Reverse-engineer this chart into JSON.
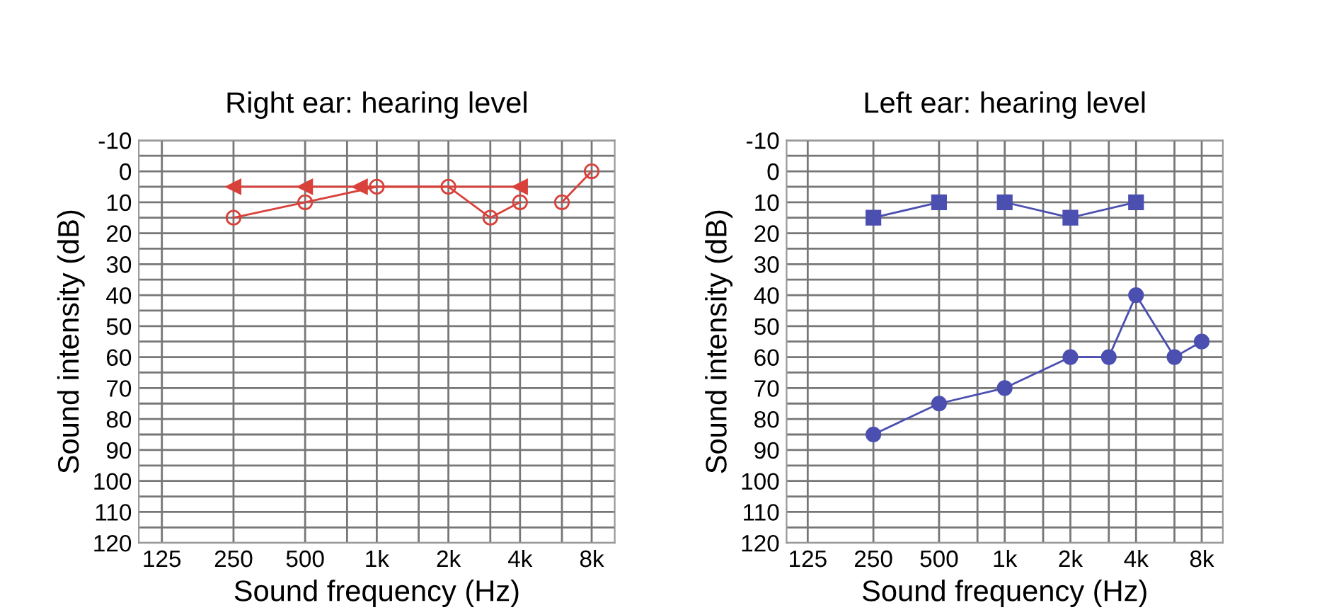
{
  "chart_data": [
    {
      "type": "line",
      "title": "Right ear: hearing level",
      "xlabel": "Sound frequency (Hz)",
      "ylabel": "Sound intensity (dB)",
      "log": "x",
      "grid": true,
      "xlim": [
        100,
        10000
      ],
      "ylim": [
        120,
        -10
      ],
      "xticks": [
        125,
        250,
        500,
        {
          "value": 750,
          "label": null
        },
        {
          "value": 1000,
          "label": "1k"
        },
        {
          "value": 1500,
          "label": null
        },
        {
          "value": 2000,
          "label": "2k"
        },
        {
          "value": 3000,
          "label": null
        },
        {
          "value": 4000,
          "label": "4k"
        },
        {
          "value": 6000,
          "label": null
        },
        {
          "value": 8000,
          "label": "8k"
        }
      ],
      "yticks": [
        -10,
        {
          "value": -5,
          "label": null
        },
        0,
        {
          "value": 5,
          "label": null
        },
        10,
        {
          "value": 15,
          "label": null
        },
        20,
        {
          "value": 25,
          "label": null
        },
        30,
        {
          "value": 35,
          "label": null
        },
        40,
        {
          "value": 45,
          "label": null
        },
        50,
        {
          "value": 55,
          "label": null
        },
        60,
        {
          "value": 65,
          "label": null
        },
        70,
        {
          "value": 75,
          "label": null
        },
        80,
        {
          "value": 85,
          "label": null
        },
        90,
        {
          "value": 95,
          "label": null
        },
        100,
        {
          "value": 105,
          "label": null
        },
        110,
        {
          "value": 115,
          "label": null
        },
        120
      ],
      "series": [
        {
          "color": "#d9413b",
          "marker": "circle",
          "x": [
            250,
            500,
            1000,
            2000,
            3000,
            4000,
            5000,
            6000,
            8000
          ],
          "values": [
            15,
            10,
            5,
            5,
            15,
            10,
            null,
            10,
            0
          ]
        },
        {
          "color": "#d9413b",
          "marker": "triangle",
          "x": [
            250,
            500,
            850,
            4000
          ],
          "values": [
            5,
            5,
            5,
            5
          ]
        }
      ]
    },
    {
      "type": "line",
      "title": "Left ear: hearing level",
      "xlabel": "Sound frequency (Hz)",
      "ylabel": "Sound intensity (dB)",
      "log": "x",
      "grid": true,
      "xlim": [
        100,
        10000
      ],
      "ylim": [
        120,
        -10
      ],
      "xticks": [
        125,
        250,
        500,
        {
          "value": 750,
          "label": null
        },
        {
          "value": 1000,
          "label": "1k"
        },
        {
          "value": 1500,
          "label": null
        },
        {
          "value": 2000,
          "label": "2k"
        },
        {
          "value": 3000,
          "label": null
        },
        {
          "value": 4000,
          "label": "4k"
        },
        {
          "value": 6000,
          "label": null
        },
        {
          "value": 8000,
          "label": "8k"
        }
      ],
      "yticks": [
        -10,
        {
          "value": -5,
          "label": null
        },
        0,
        {
          "value": 5,
          "label": null
        },
        10,
        {
          "value": 15,
          "label": null
        },
        20,
        {
          "value": 25,
          "label": null
        },
        30,
        {
          "value": 35,
          "label": null
        },
        40,
        {
          "value": 45,
          "label": null
        },
        50,
        {
          "value": 55,
          "label": null
        },
        60,
        {
          "value": 65,
          "label": null
        },
        70,
        {
          "value": 75,
          "label": null
        },
        80,
        {
          "value": 85,
          "label": null
        },
        90,
        {
          "value": 95,
          "label": null
        },
        100,
        {
          "value": 105,
          "label": null
        },
        110,
        {
          "value": 115,
          "label": null
        },
        120
      ],
      "series": [
        {
          "color": "#4b4fb0",
          "marker": "square",
          "x": [
            250,
            500,
            750,
            1000,
            2000,
            4000
          ],
          "values": [
            15,
            10,
            null,
            10,
            15,
            10
          ]
        },
        {
          "color": "#4b4fb0",
          "marker": "circle",
          "x": [
            250,
            500,
            1000,
            2000,
            3000,
            4000,
            6000,
            8000
          ],
          "values": [
            85,
            75,
            70,
            60,
            60,
            40,
            60,
            55
          ]
        }
      ]
    }
  ]
}
